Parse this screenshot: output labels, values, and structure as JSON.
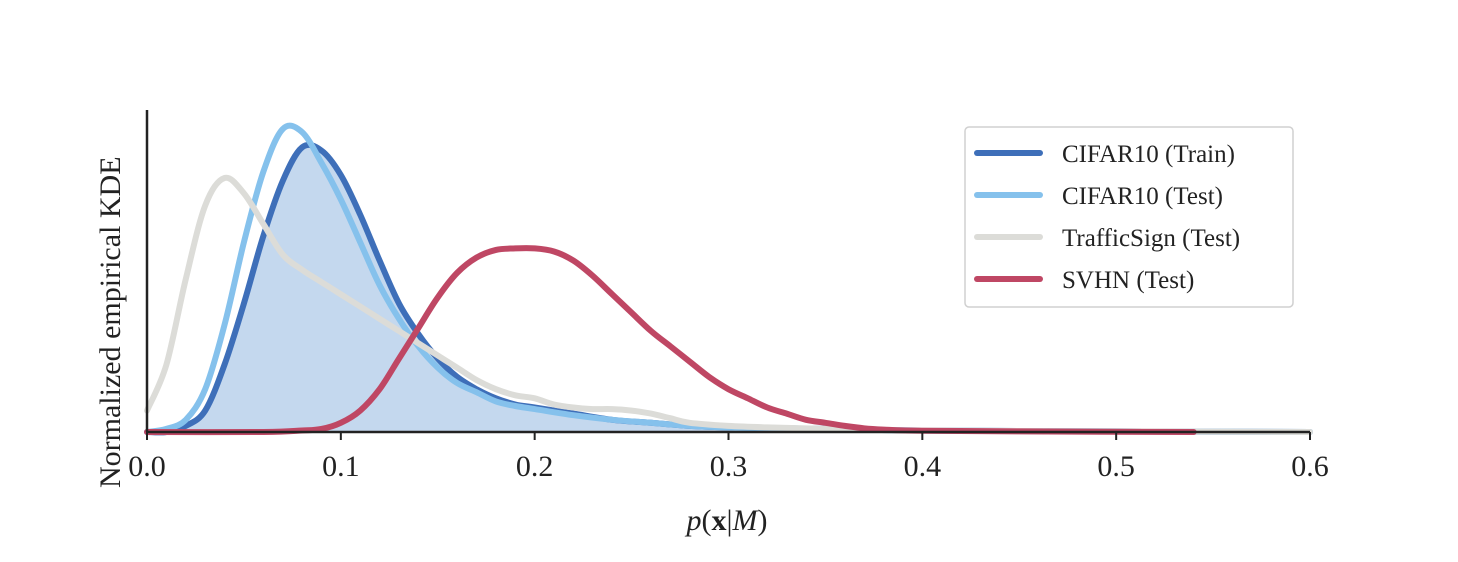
{
  "chart_data": {
    "type": "line",
    "xlabel": "p(x|M)",
    "xlabel_parts": {
      "p": "p",
      "open": "(",
      "x": "x",
      "bar": "|",
      "M": "M",
      "close": ")"
    },
    "ylabel": "Normalized empirical KDE",
    "xlim": [
      0.0,
      0.6
    ],
    "ylim": [
      0.0,
      1.0
    ],
    "xticks": [
      "0.0",
      "0.1",
      "0.2",
      "0.3",
      "0.4",
      "0.5",
      "0.6"
    ],
    "xtick_values": [
      0.0,
      0.1,
      0.2,
      0.3,
      0.4,
      0.5,
      0.6
    ],
    "grid": false,
    "legend_position": "top-right",
    "series": [
      {
        "name": "CIFAR10 (Train)",
        "color": "#3e6fb9",
        "filled": true,
        "fill_color": "#c4d8ee",
        "points": [
          [
            0.0,
            0.0
          ],
          [
            0.01,
            0.0
          ],
          [
            0.02,
            0.02
          ],
          [
            0.03,
            0.07
          ],
          [
            0.04,
            0.22
          ],
          [
            0.05,
            0.42
          ],
          [
            0.06,
            0.64
          ],
          [
            0.07,
            0.82
          ],
          [
            0.08,
            0.93
          ],
          [
            0.09,
            0.92
          ],
          [
            0.1,
            0.84
          ],
          [
            0.11,
            0.71
          ],
          [
            0.12,
            0.56
          ],
          [
            0.13,
            0.42
          ],
          [
            0.14,
            0.32
          ],
          [
            0.15,
            0.24
          ],
          [
            0.16,
            0.18
          ],
          [
            0.17,
            0.14
          ],
          [
            0.18,
            0.11
          ],
          [
            0.19,
            0.09
          ],
          [
            0.2,
            0.08
          ],
          [
            0.22,
            0.06
          ],
          [
            0.24,
            0.04
          ],
          [
            0.26,
            0.03
          ],
          [
            0.28,
            0.02
          ],
          [
            0.3,
            0.015
          ],
          [
            0.35,
            0.01
          ],
          [
            0.4,
            0.005
          ],
          [
            0.5,
            0.002
          ],
          [
            0.6,
            0.0
          ]
        ]
      },
      {
        "name": "CIFAR10 (Test)",
        "color": "#85c1ec",
        "points": [
          [
            0.0,
            0.0
          ],
          [
            0.01,
            0.01
          ],
          [
            0.02,
            0.04
          ],
          [
            0.03,
            0.14
          ],
          [
            0.04,
            0.35
          ],
          [
            0.05,
            0.62
          ],
          [
            0.06,
            0.85
          ],
          [
            0.07,
            0.99
          ],
          [
            0.08,
            0.98
          ],
          [
            0.09,
            0.88
          ],
          [
            0.1,
            0.76
          ],
          [
            0.11,
            0.62
          ],
          [
            0.12,
            0.48
          ],
          [
            0.13,
            0.37
          ],
          [
            0.14,
            0.28
          ],
          [
            0.15,
            0.21
          ],
          [
            0.16,
            0.16
          ],
          [
            0.17,
            0.13
          ],
          [
            0.18,
            0.1
          ],
          [
            0.19,
            0.085
          ],
          [
            0.2,
            0.075
          ],
          [
            0.22,
            0.055
          ],
          [
            0.24,
            0.04
          ],
          [
            0.26,
            0.03
          ],
          [
            0.28,
            0.02
          ],
          [
            0.3,
            0.015
          ],
          [
            0.35,
            0.01
          ],
          [
            0.4,
            0.005
          ],
          [
            0.5,
            0.002
          ],
          [
            0.6,
            0.0
          ]
        ]
      },
      {
        "name": "TrafficSign (Test)",
        "color": "#dcdcd8",
        "points": [
          [
            0.0,
            0.07
          ],
          [
            0.01,
            0.22
          ],
          [
            0.02,
            0.5
          ],
          [
            0.03,
            0.74
          ],
          [
            0.04,
            0.83
          ],
          [
            0.05,
            0.78
          ],
          [
            0.06,
            0.68
          ],
          [
            0.07,
            0.58
          ],
          [
            0.08,
            0.53
          ],
          [
            0.09,
            0.49
          ],
          [
            0.1,
            0.45
          ],
          [
            0.11,
            0.41
          ],
          [
            0.12,
            0.37
          ],
          [
            0.13,
            0.33
          ],
          [
            0.14,
            0.29
          ],
          [
            0.15,
            0.25
          ],
          [
            0.16,
            0.21
          ],
          [
            0.17,
            0.17
          ],
          [
            0.18,
            0.14
          ],
          [
            0.19,
            0.12
          ],
          [
            0.2,
            0.11
          ],
          [
            0.21,
            0.09
          ],
          [
            0.22,
            0.08
          ],
          [
            0.23,
            0.075
          ],
          [
            0.24,
            0.075
          ],
          [
            0.25,
            0.07
          ],
          [
            0.26,
            0.06
          ],
          [
            0.27,
            0.045
          ],
          [
            0.28,
            0.03
          ],
          [
            0.3,
            0.02
          ],
          [
            0.32,
            0.015
          ],
          [
            0.35,
            0.01
          ],
          [
            0.4,
            0.005
          ],
          [
            0.5,
            0.002
          ],
          [
            0.6,
            0.0
          ]
        ]
      },
      {
        "name": "SVHN (Test)",
        "color": "#bf4764",
        "points": [
          [
            0.0,
            0.0
          ],
          [
            0.06,
            0.0
          ],
          [
            0.08,
            0.005
          ],
          [
            0.09,
            0.01
          ],
          [
            0.1,
            0.03
          ],
          [
            0.11,
            0.07
          ],
          [
            0.12,
            0.14
          ],
          [
            0.13,
            0.24
          ],
          [
            0.14,
            0.34
          ],
          [
            0.15,
            0.44
          ],
          [
            0.16,
            0.52
          ],
          [
            0.17,
            0.57
          ],
          [
            0.18,
            0.595
          ],
          [
            0.19,
            0.6
          ],
          [
            0.2,
            0.6
          ],
          [
            0.21,
            0.59
          ],
          [
            0.22,
            0.56
          ],
          [
            0.23,
            0.51
          ],
          [
            0.24,
            0.45
          ],
          [
            0.25,
            0.39
          ],
          [
            0.26,
            0.33
          ],
          [
            0.27,
            0.28
          ],
          [
            0.28,
            0.23
          ],
          [
            0.29,
            0.18
          ],
          [
            0.3,
            0.14
          ],
          [
            0.31,
            0.11
          ],
          [
            0.32,
            0.08
          ],
          [
            0.33,
            0.06
          ],
          [
            0.34,
            0.04
          ],
          [
            0.35,
            0.03
          ],
          [
            0.36,
            0.02
          ],
          [
            0.37,
            0.012
          ],
          [
            0.38,
            0.008
          ],
          [
            0.4,
            0.004
          ],
          [
            0.45,
            0.002
          ],
          [
            0.54,
            0.0
          ]
        ]
      }
    ]
  }
}
